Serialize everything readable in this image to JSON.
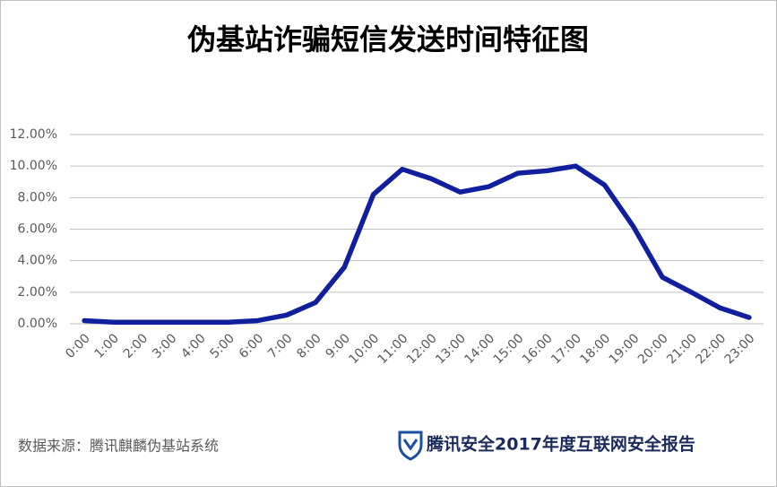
{
  "chart_data": {
    "type": "line",
    "title": "伪基站诈骗短信发送时间特征图",
    "categories": [
      "0:00",
      "1:00",
      "2:00",
      "3:00",
      "4:00",
      "5:00",
      "6:00",
      "7:00",
      "8:00",
      "9:00",
      "10:00",
      "11:00",
      "12:00",
      "13:00",
      "14:00",
      "15:00",
      "16:00",
      "17:00",
      "18:00",
      "19:00",
      "20:00",
      "21:00",
      "22:00",
      "23:00"
    ],
    "values": [
      0.2,
      0.1,
      0.1,
      0.1,
      0.1,
      0.1,
      0.2,
      0.55,
      1.35,
      3.6,
      8.2,
      9.8,
      9.2,
      8.35,
      8.7,
      9.55,
      9.7,
      10.0,
      8.8,
      6.15,
      2.95,
      2.0,
      1.0,
      0.4
    ],
    "color": "#0f1f9e",
    "ylim": [
      0,
      12
    ],
    "yticks": [
      {
        "value": 0,
        "label": "0.00%"
      },
      {
        "value": 2,
        "label": "2.00%"
      },
      {
        "value": 4,
        "label": "4.00%"
      },
      {
        "value": 6,
        "label": "6.00%"
      },
      {
        "value": 8,
        "label": "8.00%"
      },
      {
        "value": 10,
        "label": "10.00%"
      },
      {
        "value": 12,
        "label": "12.00%"
      }
    ],
    "grid": true,
    "source": "数据来源：腾讯麒麟伪基站系统",
    "brand": "腾讯安全2017年度互联网安全报告"
  }
}
